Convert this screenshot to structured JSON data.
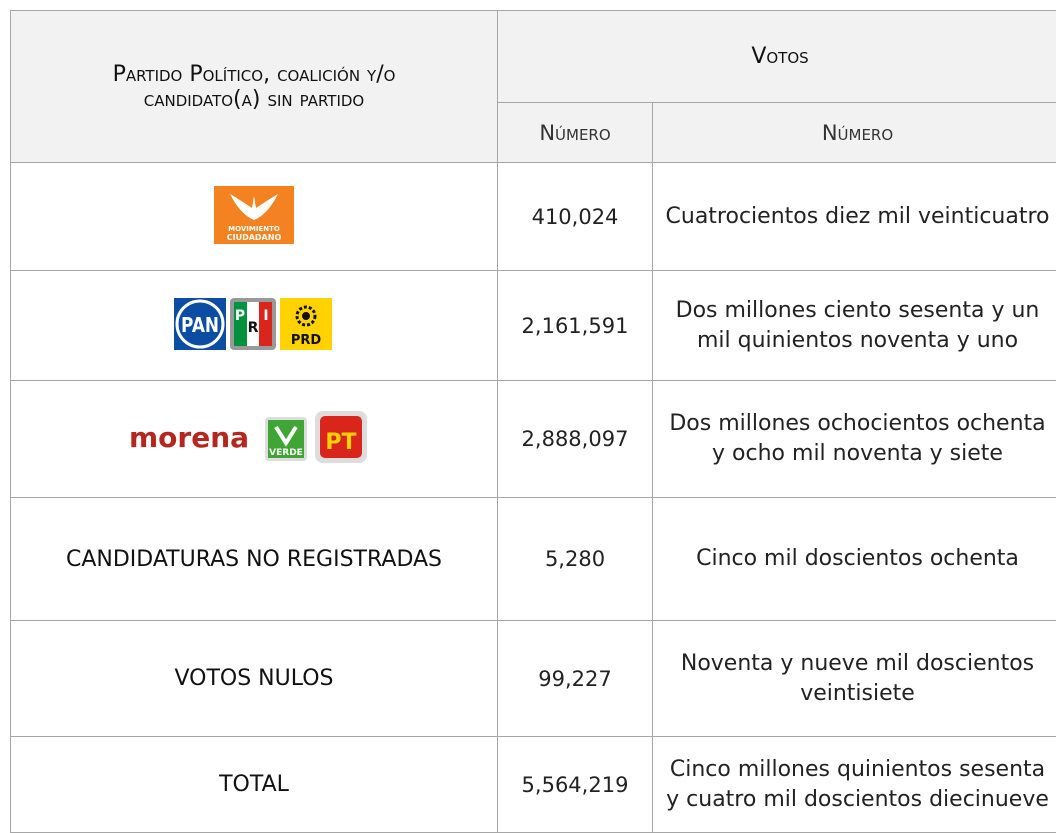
{
  "table": {
    "header": {
      "party": "Partido Político, coalición y/o candidato(a) sin partido",
      "votes": "Votos",
      "number": "Número",
      "words": "Número"
    },
    "rows": [
      {
        "logos": [
          {
            "lines": [
              "MOVIMIENTO",
              "CIUDADANO"
            ]
          }
        ],
        "number": "410,024",
        "words": "Cuatrocientos diez mil veinticuatro"
      },
      {
        "logos": [
          {
            "label": "PAN"
          },
          {
            "lines": [
              "P",
              "R",
              "I"
            ]
          },
          {
            "label": "PRD"
          }
        ],
        "number": "2,161,591",
        "words": "Dos millones ciento sesenta y un mil quinientos noventa y uno"
      },
      {
        "logos": [
          {
            "label": "morena"
          },
          {
            "label": "VERDE"
          },
          {
            "label": "PT"
          }
        ],
        "number": "2,888,097",
        "words": "Dos millones ochocientos ochenta y ocho mil noventa y siete"
      },
      {
        "party": "CANDIDATURAS NO REGISTRADAS",
        "number": "5,280",
        "words": "Cinco mil doscientos ochenta"
      },
      {
        "party": "VOTOS NULOS",
        "number": "99,227",
        "words": "Noventa y nueve mil doscientos veintisiete"
      },
      {
        "party": "TOTAL",
        "number": "5,564,219",
        "words": "Cinco millones quinientos sesenta y cuatro mil doscientos diecinueve"
      }
    ]
  }
}
